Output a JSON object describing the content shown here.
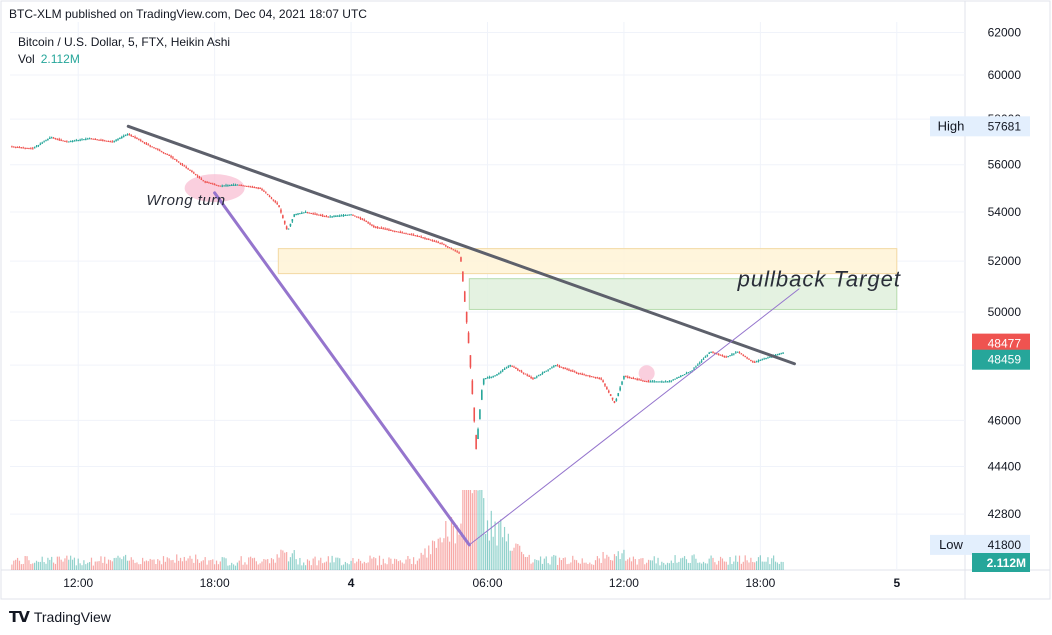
{
  "header": {
    "published": "BTC-XLM published on TradingView.com, Dec 04, 2021 18:07 UTC",
    "symbol": "Bitcoin / U.S. Dollar, 5, FTX, Heikin Ashi",
    "vol_label": "Vol",
    "vol_value": "2.112M"
  },
  "footer": {
    "brand": "TradingView",
    "logo_icon": "tradingview-logo-icon"
  },
  "chart_data": {
    "type": "candlestick",
    "style": "Heikin Ashi",
    "x_ticks": [
      {
        "label": "12:00",
        "x": 3.0
      },
      {
        "label": "18:00",
        "x": 9.0
      },
      {
        "label": "4",
        "x": 15.0
      },
      {
        "label": "06:00",
        "x": 21.0
      },
      {
        "label": "12:00",
        "x": 27.0
      },
      {
        "label": "18:00",
        "x": 33.0
      },
      {
        "label": "5",
        "x": 39.0
      }
    ],
    "x_unit": "hours since Dec 03 09:00 UTC",
    "xlim": [
      0,
      42
    ],
    "y_ticks": [
      "62000",
      "60000",
      "58000",
      "56000",
      "54000",
      "52000",
      "50000",
      "48000",
      "46000",
      "44400",
      "42800"
    ],
    "ylim": [
      41000,
      62500
    ],
    "y_scale": "log",
    "price_path": [
      [
        0,
        56800
      ],
      [
        1,
        56700
      ],
      [
        1.8,
        57200
      ],
      [
        2.5,
        57000
      ],
      [
        3.5,
        57150
      ],
      [
        4.5,
        57000
      ],
      [
        5.2,
        57350
      ],
      [
        6,
        56900
      ],
      [
        7,
        56400
      ],
      [
        8,
        55700
      ],
      [
        8.5,
        55300
      ],
      [
        9.2,
        55100
      ],
      [
        10,
        55150
      ],
      [
        11,
        55000
      ],
      [
        11.8,
        54300
      ],
      [
        12.2,
        53200
      ],
      [
        12.5,
        53900
      ],
      [
        13,
        54000
      ],
      [
        14,
        53800
      ],
      [
        15,
        53900
      ],
      [
        15.5,
        53700
      ],
      [
        16,
        53400
      ],
      [
        17,
        53200
      ],
      [
        18,
        53000
      ],
      [
        19,
        52700
      ],
      [
        19.8,
        52300
      ],
      [
        20.2,
        48500
      ],
      [
        20.5,
        45000
      ],
      [
        20.8,
        47500
      ],
      [
        21.3,
        47600
      ],
      [
        22,
        48000
      ],
      [
        23,
        47500
      ],
      [
        24,
        48000
      ],
      [
        25,
        47700
      ],
      [
        26,
        47500
      ],
      [
        26.6,
        46600
      ],
      [
        27,
        47600
      ],
      [
        28,
        47400
      ],
      [
        29,
        47400
      ],
      [
        30,
        47800
      ],
      [
        30.8,
        48500
      ],
      [
        31.5,
        48300
      ],
      [
        32,
        48500
      ],
      [
        32.7,
        48100
      ],
      [
        33.2,
        48250
      ],
      [
        34,
        48460
      ]
    ],
    "volume_peak_hour": 20.4,
    "horizontal_zones": [
      {
        "name": "yellow-zone",
        "x0": 11.8,
        "x1": 39.0,
        "y0": 51500,
        "y1": 52500,
        "color": "#fff3d6"
      },
      {
        "name": "green-zone",
        "x0": 20.2,
        "x1": 39.0,
        "y0": 50100,
        "y1": 51300,
        "color": "#dff0dc"
      }
    ],
    "trend_lines": [
      {
        "name": "downtrend-line",
        "x1": 5.2,
        "y1": 57680,
        "x2": 34.5,
        "y2": 48050,
        "color": "#5d606b",
        "width": 3
      },
      {
        "name": "drop-line",
        "x1": 9.0,
        "y1": 54800,
        "x2": 20.2,
        "y2": 41800,
        "color": "#9575cd",
        "width": 3
      },
      {
        "name": "recovery-line",
        "x1": 20.2,
        "y1": 41800,
        "x2": 34.7,
        "y2": 50900,
        "color": "#9575cd",
        "width": 1
      }
    ],
    "highlights": [
      {
        "name": "wrong-turn-highlight",
        "x": 9.0,
        "y": 55000,
        "color": "#f8bbd0"
      },
      {
        "name": "dip-highlight",
        "x": 28.0,
        "y": 47700,
        "color": "#f8bbd0"
      }
    ],
    "annotations": [
      {
        "name": "wrong-turn-annotation",
        "text": "Wrong turn",
        "x": 6.0,
        "y": 54300,
        "size": 15
      },
      {
        "name": "pullback-target-annotation",
        "text": "pullback Target",
        "x": 32.0,
        "y": 51000,
        "size": 22
      }
    ],
    "price_labels": [
      {
        "name": "high-label",
        "title": "High",
        "value": "57681",
        "price": 57681,
        "bg": "#e3effd",
        "fg": "#131722"
      },
      {
        "name": "price-label-red",
        "title": "",
        "value": "48477",
        "price": 48800,
        "bg": "#ef5350",
        "fg": "#ffffff"
      },
      {
        "name": "price-label-green",
        "title": "",
        "value": "48459",
        "price": 48200,
        "bg": "#26a69a",
        "fg": "#ffffff"
      },
      {
        "name": "low-label",
        "title": "Low",
        "value": "41800",
        "price": 41800,
        "bg": "#e3effd",
        "fg": "#131722"
      }
    ],
    "volume_label": {
      "value": "2.112M",
      "bg": "#26a69a",
      "fg": "#ffffff"
    },
    "colors": {
      "up": "#26a69a",
      "down": "#ef5350",
      "grid": "#f0f3fa",
      "axis_text": "#131722"
    }
  }
}
